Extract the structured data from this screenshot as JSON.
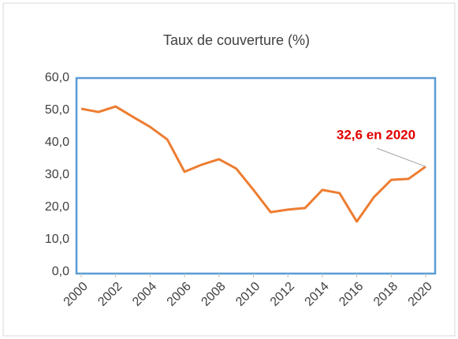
{
  "chart_data": {
    "type": "line",
    "title": "Taux de couverture (%)",
    "x": [
      2000,
      2001,
      2002,
      2003,
      2004,
      2005,
      2006,
      2007,
      2008,
      2009,
      2010,
      2011,
      2012,
      2013,
      2014,
      2015,
      2016,
      2017,
      2018,
      2019,
      2020
    ],
    "series": [
      {
        "name": "Taux de couverture",
        "color": "#ed7d31",
        "values": [
          50.5,
          49.5,
          51.2,
          48,
          44.9,
          41,
          31,
          33.2,
          34.9,
          32,
          25.4,
          18.5,
          19.3,
          19.8,
          25.4,
          24.4,
          15.6,
          23.2,
          28.5,
          28.8,
          32.6
        ]
      }
    ],
    "xlim": [
      2000,
      2020
    ],
    "xticks": [
      2000,
      2002,
      2004,
      2006,
      2008,
      2010,
      2012,
      2014,
      2016,
      2018,
      2020
    ],
    "ylim": [
      0,
      60
    ],
    "yticks": [
      {
        "value": 0,
        "label": "0,0"
      },
      {
        "value": 10,
        "label": "10,0"
      },
      {
        "value": 20,
        "label": "20,0"
      },
      {
        "value": 30,
        "label": "30,0"
      },
      {
        "value": 40,
        "label": "40,0"
      },
      {
        "value": 50,
        "label": "50,0"
      },
      {
        "value": 60,
        "label": "60,0"
      }
    ],
    "annotation": "32,6 en 2020",
    "frame_color": "#5b9bd5"
  }
}
